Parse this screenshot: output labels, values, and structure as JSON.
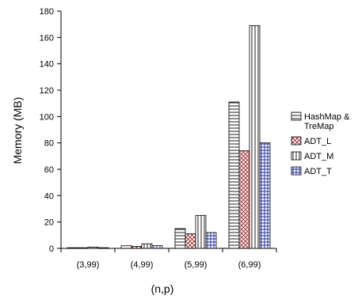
{
  "chart_data": {
    "type": "bar",
    "xlabel": "(n,p)",
    "ylabel": "Memory (MB)",
    "ylim": [
      0,
      180
    ],
    "yticks": [
      0,
      20,
      40,
      60,
      80,
      100,
      120,
      140,
      160,
      180
    ],
    "categories": [
      "(3,99)",
      "(4,99)",
      "(5,99)",
      "(6,99)"
    ],
    "legend_position": "right",
    "series": [
      {
        "name": "HashMap & TreMap",
        "legend_lines": [
          "HashMap &",
          "TreMap"
        ],
        "pattern": "horizontal-lines",
        "values": [
          0.5,
          2,
          15,
          111
        ]
      },
      {
        "name": "ADT_L",
        "legend_lines": [
          "ADT_L"
        ],
        "pattern": "crosshatch-red",
        "values": [
          0.5,
          1.5,
          11,
          74
        ]
      },
      {
        "name": "ADT_M",
        "legend_lines": [
          "ADT_M"
        ],
        "pattern": "vertical-lines",
        "values": [
          1,
          3.5,
          25,
          169
        ]
      },
      {
        "name": "ADT_T",
        "legend_lines": [
          "ADT_T"
        ],
        "pattern": "grid-blue",
        "values": [
          0.5,
          2,
          12,
          80
        ]
      }
    ]
  }
}
